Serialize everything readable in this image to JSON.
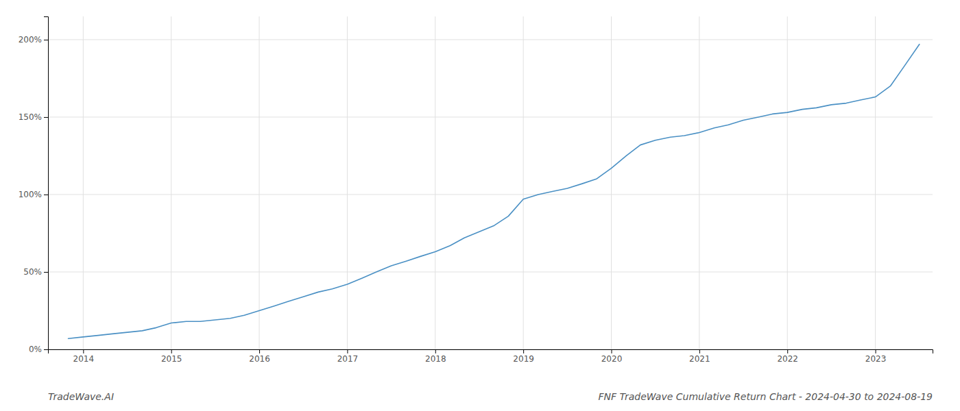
{
  "chart_data": {
    "type": "line",
    "title": "FNF TradeWave Cumulative Return Chart - 2024-04-30 to 2024-08-19",
    "annotations": [
      "TradeWave.AI"
    ],
    "color": "#4a90c4",
    "grid": true,
    "x": [
      2013.83,
      2014.0,
      2014.17,
      2014.33,
      2014.5,
      2014.67,
      2014.83,
      2015.0,
      2015.17,
      2015.33,
      2015.5,
      2015.67,
      2015.83,
      2016.0,
      2016.17,
      2016.33,
      2016.5,
      2016.67,
      2016.83,
      2017.0,
      2017.17,
      2017.33,
      2017.5,
      2017.67,
      2017.83,
      2018.0,
      2018.17,
      2018.33,
      2018.5,
      2018.67,
      2018.83,
      2019.0,
      2019.17,
      2019.33,
      2019.5,
      2019.67,
      2019.83,
      2020.0,
      2020.17,
      2020.33,
      2020.5,
      2020.67,
      2020.83,
      2021.0,
      2021.17,
      2021.33,
      2021.5,
      2021.67,
      2021.83,
      2022.0,
      2022.17,
      2022.33,
      2022.5,
      2022.67,
      2022.83,
      2023.0,
      2023.17,
      2023.33,
      2023.5
    ],
    "values": [
      7,
      8,
      9,
      10,
      11,
      12,
      14,
      17,
      18,
      18,
      19,
      20,
      22,
      25,
      28,
      31,
      34,
      37,
      39,
      42,
      46,
      50,
      54,
      57,
      60,
      63,
      67,
      72,
      76,
      80,
      86,
      97,
      100,
      102,
      104,
      107,
      110,
      117,
      125,
      132,
      135,
      137,
      138,
      140,
      143,
      145,
      148,
      150,
      152,
      153,
      155,
      156,
      158,
      159,
      161,
      163,
      170,
      183,
      197
    ],
    "xlim": [
      2013.6,
      2023.65
    ],
    "xticks": [
      2014,
      2015,
      2016,
      2017,
      2018,
      2019,
      2020,
      2021,
      2022,
      2023
    ],
    "ylim": [
      0,
      215
    ],
    "yticks": [
      {
        "value": 0,
        "label": "0%"
      },
      {
        "value": 50,
        "label": "50%"
      },
      {
        "value": 100,
        "label": "100%"
      },
      {
        "value": 150,
        "label": "150%"
      },
      {
        "value": 200,
        "label": "200%"
      }
    ]
  }
}
